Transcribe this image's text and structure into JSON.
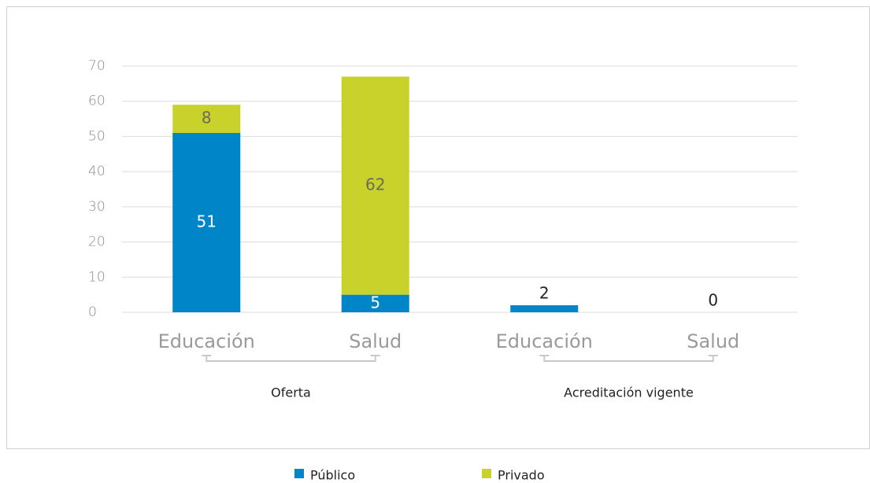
{
  "chart_data": {
    "type": "stacked_bar",
    "categories": [
      "Educación",
      "Salud",
      "Educación",
      "Salud"
    ],
    "group_labels": [
      "Oferta",
      "Acreditación vigente"
    ],
    "series": [
      {
        "name": "Público",
        "color": "#0085c8",
        "values": [
          51,
          5,
          2,
          0
        ]
      },
      {
        "name": "Privado",
        "color": "#c8d22a",
        "values": [
          8,
          62,
          null,
          null
        ]
      }
    ],
    "ylim": [
      0,
      70
    ],
    "yticks": [
      0,
      10,
      20,
      30,
      40,
      50,
      60,
      70
    ],
    "grid": true,
    "legend": "bottom"
  }
}
